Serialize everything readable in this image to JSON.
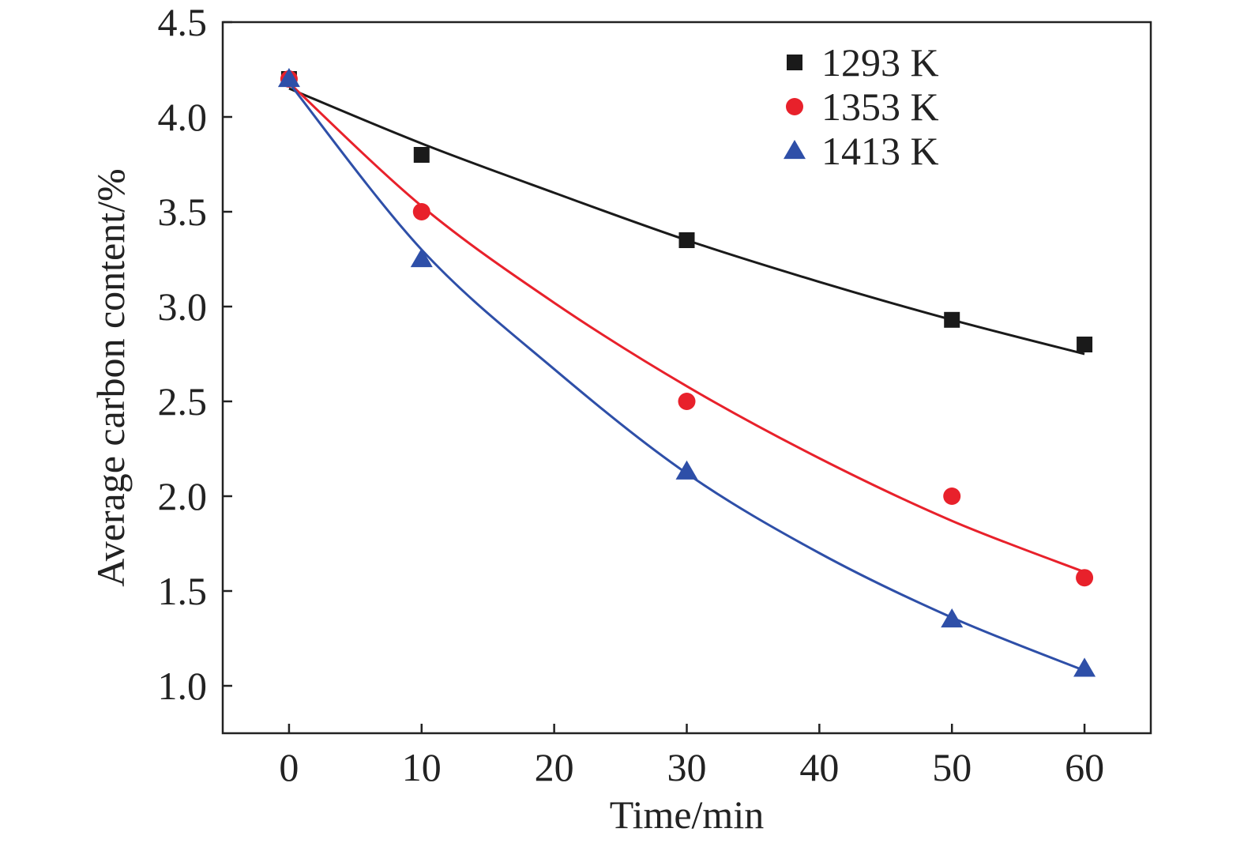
{
  "chart_data": {
    "type": "scatter",
    "xlabel": "Time/min",
    "ylabel": "Average carbon content/%",
    "xlim": [
      -5,
      65
    ],
    "ylim": [
      0.75,
      4.5
    ],
    "xticks": [
      0,
      10,
      20,
      30,
      40,
      50,
      60
    ],
    "yticks": [
      1.0,
      1.5,
      2.0,
      2.5,
      3.0,
      3.5,
      4.0,
      4.5
    ],
    "ytick_labels": [
      "1.0",
      "1.5",
      "2.0",
      "2.5",
      "3.0",
      "3.5",
      "4.0",
      "4.5"
    ],
    "grid": false,
    "legend_position": "top-right",
    "series": [
      {
        "name": "1293 K",
        "marker": "square",
        "color": "#1a1a1a",
        "x": [
          0,
          10,
          30,
          50,
          60
        ],
        "y": [
          4.2,
          3.8,
          3.35,
          2.93,
          2.8
        ],
        "fit": [
          [
            0,
            4.15
          ],
          [
            10,
            3.86
          ],
          [
            20,
            3.6
          ],
          [
            30,
            3.35
          ],
          [
            40,
            3.13
          ],
          [
            50,
            2.93
          ],
          [
            60,
            2.75
          ]
        ]
      },
      {
        "name": "1353 K",
        "marker": "circle",
        "color": "#e8212b",
        "x": [
          0,
          10,
          30,
          50,
          60
        ],
        "y": [
          4.2,
          3.5,
          2.5,
          2.0,
          1.57
        ],
        "fit": [
          [
            0,
            4.18
          ],
          [
            10,
            3.53
          ],
          [
            20,
            3.02
          ],
          [
            30,
            2.58
          ],
          [
            40,
            2.2
          ],
          [
            50,
            1.87
          ],
          [
            60,
            1.6
          ]
        ]
      },
      {
        "name": "1413 K",
        "marker": "triangle",
        "color": "#2e4fa8",
        "x": [
          0,
          10,
          30,
          50,
          60
        ],
        "y": [
          4.2,
          3.25,
          2.13,
          1.35,
          1.09
        ],
        "fit": [
          [
            0,
            4.18
          ],
          [
            10,
            3.3
          ],
          [
            20,
            2.67
          ],
          [
            30,
            2.12
          ],
          [
            40,
            1.7
          ],
          [
            50,
            1.36
          ],
          [
            60,
            1.08
          ]
        ]
      }
    ]
  }
}
